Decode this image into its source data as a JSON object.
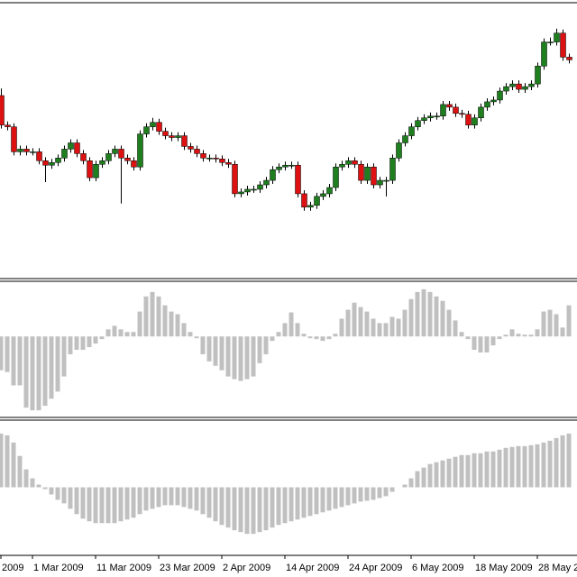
{
  "chart_data": [
    {
      "type": "candlestick",
      "up_color": "#1f7f1f",
      "down_color": "#dd1111",
      "wick_color": "#000000",
      "ylim": [
        2,
        307
      ],
      "open": [
        205,
        172,
        170,
        142,
        145,
        142,
        142,
        132,
        127,
        130,
        135,
        145,
        152,
        140,
        132,
        113,
        128,
        132,
        140,
        145,
        135,
        132,
        125,
        162,
        170,
        175,
        165,
        160,
        158,
        160,
        148,
        145,
        140,
        135,
        135,
        134,
        130,
        128,
        95,
        97,
        100,
        100,
        105,
        110,
        122,
        125,
        127,
        127,
        95,
        80,
        82,
        92,
        95,
        102,
        125,
        128,
        132,
        128,
        110,
        125,
        105,
        110,
        110,
        135,
        152,
        160,
        170,
        177,
        180,
        182,
        182,
        195,
        192,
        185,
        184,
        172,
        180,
        192,
        198,
        200,
        210,
        215,
        218,
        212,
        215,
        218,
        238,
        265,
        265,
        275,
        248
      ],
      "high": [
        213,
        176,
        174,
        149,
        149,
        146,
        146,
        136,
        134,
        139,
        149,
        156,
        156,
        144,
        136,
        132,
        136,
        144,
        149,
        149,
        139,
        136,
        166,
        174,
        180,
        179,
        169,
        164,
        164,
        164,
        152,
        149,
        144,
        139,
        139,
        138,
        134,
        132,
        101,
        104,
        104,
        109,
        114,
        126,
        129,
        131,
        131,
        131,
        99,
        86,
        96,
        99,
        106,
        129,
        132,
        136,
        136,
        132,
        129,
        129,
        114,
        114,
        139,
        156,
        164,
        174,
        181,
        184,
        186,
        186,
        199,
        199,
        196,
        189,
        188,
        184,
        196,
        202,
        204,
        214,
        219,
        222,
        222,
        219,
        222,
        242,
        269,
        270,
        280,
        279,
        252
      ],
      "low": [
        168,
        166,
        138,
        138,
        138,
        138,
        128,
        108,
        123,
        126,
        131,
        141,
        136,
        128,
        109,
        109,
        124,
        128,
        136,
        84,
        128,
        121,
        121,
        158,
        166,
        161,
        156,
        154,
        154,
        144,
        141,
        136,
        131,
        131,
        130,
        126,
        124,
        91,
        91,
        93,
        96,
        96,
        101,
        106,
        118,
        121,
        123,
        91,
        76,
        76,
        78,
        88,
        91,
        98,
        121,
        124,
        124,
        106,
        106,
        101,
        101,
        92,
        106,
        131,
        148,
        156,
        166,
        173,
        176,
        178,
        178,
        188,
        181,
        180,
        168,
        168,
        176,
        188,
        194,
        196,
        206,
        211,
        208,
        208,
        211,
        214,
        234,
        261,
        261,
        244,
        241
      ],
      "close": [
        172,
        170,
        142,
        145,
        142,
        142,
        132,
        127,
        130,
        135,
        145,
        152,
        140,
        132,
        113,
        128,
        132,
        140,
        145,
        135,
        132,
        125,
        162,
        170,
        175,
        165,
        160,
        158,
        160,
        148,
        145,
        140,
        135,
        135,
        134,
        130,
        128,
        95,
        97,
        100,
        100,
        105,
        110,
        122,
        125,
        127,
        127,
        95,
        80,
        82,
        92,
        95,
        102,
        125,
        128,
        132,
        128,
        110,
        125,
        105,
        110,
        110,
        135,
        152,
        160,
        170,
        177,
        180,
        182,
        182,
        195,
        192,
        185,
        184,
        172,
        180,
        192,
        198,
        200,
        210,
        215,
        218,
        212,
        215,
        218,
        238,
        265,
        265,
        275,
        248,
        245
      ]
    },
    {
      "type": "bar",
      "color": "#c0c0c0",
      "ylim": [
        -90,
        61
      ],
      "values": [
        -38,
        -40,
        -55,
        -55,
        -80,
        -83,
        -83,
        -78,
        -70,
        -62,
        -45,
        -20,
        -15,
        -15,
        -12,
        -8,
        -3,
        8,
        12,
        8,
        5,
        5,
        28,
        45,
        50,
        45,
        35,
        28,
        25,
        15,
        5,
        -2,
        -20,
        -28,
        -33,
        -38,
        -45,
        -48,
        -50,
        -48,
        -45,
        -30,
        -20,
        -5,
        5,
        15,
        27,
        15,
        3,
        -2,
        -3,
        -5,
        -3,
        3,
        20,
        30,
        38,
        33,
        28,
        20,
        15,
        15,
        22,
        20,
        30,
        42,
        50,
        53,
        50,
        45,
        40,
        30,
        18,
        5,
        -3,
        -15,
        -18,
        -18,
        -10,
        -3,
        2,
        8,
        3,
        2,
        2,
        8,
        28,
        30,
        25,
        10,
        35
      ]
    },
    {
      "type": "bar",
      "color": "#c0c0c0",
      "ylim": [
        -75,
        74
      ],
      "values": [
        60,
        58,
        50,
        35,
        20,
        10,
        3,
        -2,
        -8,
        -14,
        -18,
        -24,
        -30,
        -35,
        -38,
        -40,
        -40,
        -40,
        -40,
        -38,
        -36,
        -34,
        -30,
        -26,
        -24,
        -22,
        -20,
        -20,
        -20,
        -22,
        -24,
        -26,
        -30,
        -34,
        -38,
        -42,
        -45,
        -48,
        -50,
        -52,
        -52,
        -50,
        -48,
        -45,
        -42,
        -40,
        -38,
        -36,
        -34,
        -32,
        -30,
        -28,
        -26,
        -24,
        -22,
        -20,
        -18,
        -16,
        -15,
        -14,
        -12,
        -10,
        -5,
        0,
        3,
        10,
        18,
        22,
        26,
        28,
        30,
        32,
        34,
        36,
        36,
        38,
        38,
        40,
        40,
        42,
        44,
        45,
        46,
        46,
        47,
        48,
        50,
        52,
        55,
        58,
        60
      ],
      "xticks": [
        {
          "value": 0,
          "label": "2009"
        },
        {
          "value": 5,
          "label": "1 Mar 2009"
        },
        {
          "value": 15,
          "label": "11 Mar 2009"
        },
        {
          "value": 25,
          "label": "23 Mar 2009"
        },
        {
          "value": 35,
          "label": "2 Apr 2009"
        },
        {
          "value": 45,
          "label": "14 Apr 2009"
        },
        {
          "value": 55,
          "label": "24 Apr 2009"
        },
        {
          "value": 65,
          "label": "6 May 2009"
        },
        {
          "value": 75,
          "label": "18 May 2009"
        },
        {
          "value": 85,
          "label": "28 May 2"
        }
      ]
    }
  ]
}
